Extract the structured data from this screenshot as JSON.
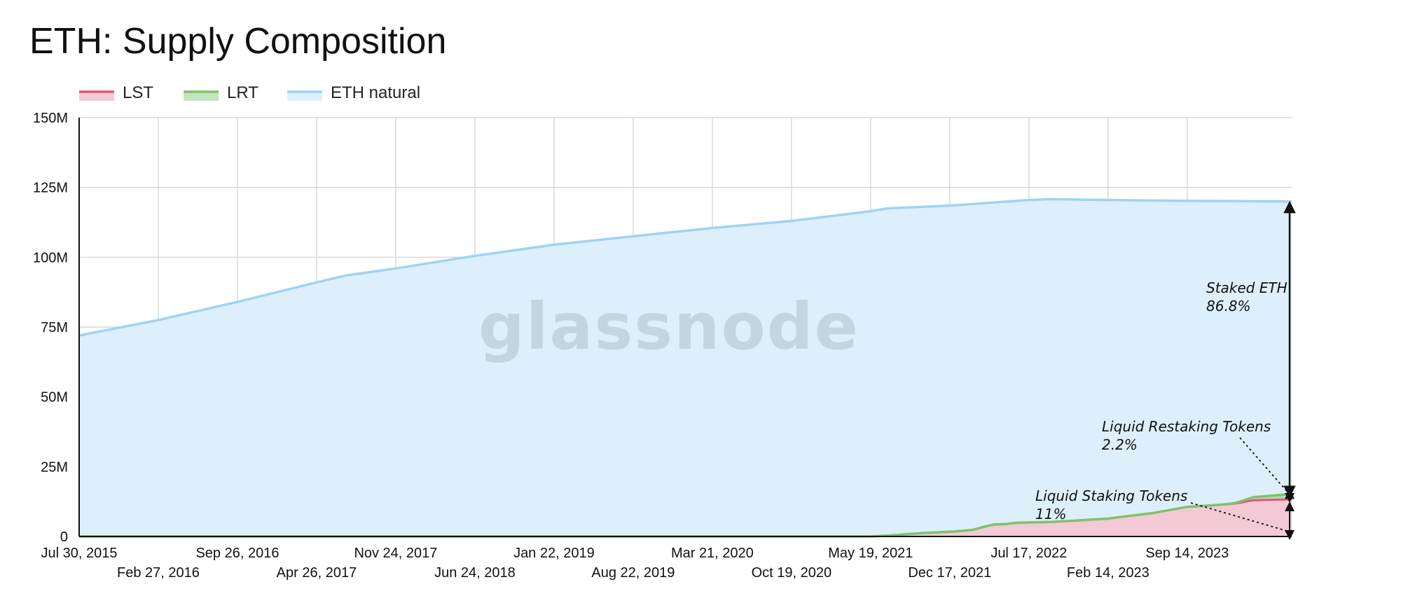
{
  "colors": {
    "lst": "#e0567a",
    "lst_fill": "#f2c9d4",
    "lrt": "#7fc26b",
    "eth": "#9fd3f2",
    "eth_fill": "#ddeffb",
    "grid": "#d9d9d9",
    "axis": "#111111"
  },
  "watermark": "glassnode",
  "chart_data": {
    "type": "area",
    "title": "ETH: Supply Composition",
    "stacked": true,
    "legend_position": "top-left",
    "grid": true,
    "ylim": [
      0,
      150000000
    ],
    "y_ticks": [
      {
        "value": 0,
        "label": "0"
      },
      {
        "value": 25000000,
        "label": "25M"
      },
      {
        "value": 50000000,
        "label": "50M"
      },
      {
        "value": 75000000,
        "label": "75M"
      },
      {
        "value": 100000000,
        "label": "100M"
      },
      {
        "value": 125000000,
        "label": "125M"
      },
      {
        "value": 150000000,
        "label": "150M"
      }
    ],
    "xlim": [
      "2015-07-30",
      "2024-06-20"
    ],
    "x_ticks": [
      {
        "date": "2015-07-30",
        "label": "Jul 30, 2015"
      },
      {
        "date": "2016-02-27",
        "label": "Feb 27, 2016"
      },
      {
        "date": "2016-09-26",
        "label": "Sep 26, 2016"
      },
      {
        "date": "2017-04-26",
        "label": "Apr 26, 2017"
      },
      {
        "date": "2017-11-24",
        "label": "Nov 24, 2017"
      },
      {
        "date": "2018-06-24",
        "label": "Jun 24, 2018"
      },
      {
        "date": "2019-01-22",
        "label": "Jan 22, 2019"
      },
      {
        "date": "2019-08-22",
        "label": "Aug 22, 2019"
      },
      {
        "date": "2020-03-21",
        "label": "Mar 21, 2020"
      },
      {
        "date": "2020-10-19",
        "label": "Oct 19, 2020"
      },
      {
        "date": "2021-05-19",
        "label": "May 19, 2021"
      },
      {
        "date": "2021-12-17",
        "label": "Dec 17, 2021"
      },
      {
        "date": "2022-07-17",
        "label": "Jul 17, 2022"
      },
      {
        "date": "2023-02-14",
        "label": "Feb 14, 2023"
      },
      {
        "date": "2023-09-14",
        "label": "Sep 14, 2023"
      }
    ],
    "series": [
      {
        "name": "LST",
        "key": "lst",
        "points": [
          [
            "2015-07-30",
            0
          ],
          [
            "2021-05-19",
            0
          ],
          [
            "2021-07-15",
            400000
          ],
          [
            "2021-10-01",
            1200000
          ],
          [
            "2022-01-01",
            1800000
          ],
          [
            "2022-02-15",
            2300000
          ],
          [
            "2022-03-20",
            3500000
          ],
          [
            "2022-04-15",
            4300000
          ],
          [
            "2022-05-20",
            4500000
          ],
          [
            "2022-06-10",
            4900000
          ],
          [
            "2022-09-15",
            5200000
          ],
          [
            "2022-12-01",
            5800000
          ],
          [
            "2023-02-14",
            6400000
          ],
          [
            "2023-04-01",
            7200000
          ],
          [
            "2023-06-15",
            8400000
          ],
          [
            "2023-09-14",
            10600000
          ],
          [
            "2023-11-15",
            11100000
          ],
          [
            "2024-01-20",
            11800000
          ],
          [
            "2024-03-10",
            13000000
          ],
          [
            "2024-06-20",
            13300000
          ]
        ]
      },
      {
        "name": "LRT",
        "key": "lrt",
        "points": [
          [
            "2015-07-30",
            0
          ],
          [
            "2024-01-01",
            0
          ],
          [
            "2024-01-20",
            200000
          ],
          [
            "2024-02-15",
            600000
          ],
          [
            "2024-03-10",
            1100000
          ],
          [
            "2024-06-20",
            1900000
          ]
        ]
      },
      {
        "name": "ETH natural",
        "key": "eth",
        "total_points": [
          [
            "2015-07-30",
            72000000
          ],
          [
            "2016-02-27",
            77500000
          ],
          [
            "2016-09-26",
            84000000
          ],
          [
            "2017-04-26",
            91000000
          ],
          [
            "2017-07-15",
            93500000
          ],
          [
            "2017-11-24",
            96000000
          ],
          [
            "2018-06-24",
            100500000
          ],
          [
            "2019-01-22",
            104500000
          ],
          [
            "2019-08-22",
            107500000
          ],
          [
            "2020-03-21",
            110500000
          ],
          [
            "2020-10-19",
            113000000
          ],
          [
            "2021-05-19",
            116500000
          ],
          [
            "2021-07-01",
            117500000
          ],
          [
            "2021-12-17",
            118500000
          ],
          [
            "2022-07-17",
            120500000
          ],
          [
            "2022-09-15",
            120800000
          ],
          [
            "2023-02-14",
            120500000
          ],
          [
            "2023-09-14",
            120200000
          ],
          [
            "2024-06-20",
            120000000
          ]
        ]
      }
    ],
    "annotations": [
      {
        "text": [
          "Staked ETH",
          "86.8%"
        ],
        "kind": "bracket",
        "from": 16000000,
        "to": 120000000,
        "date": "2024-06-20"
      },
      {
        "text": [
          "Liquid Restaking Tokens",
          "2.2%"
        ],
        "kind": "bracket",
        "from": 13300000,
        "to": 15200000,
        "date": "2024-06-20"
      },
      {
        "text": [
          "Liquid Staking Tokens",
          "11%"
        ],
        "kind": "bracket",
        "from": 0,
        "to": 13300000,
        "date": "2024-06-20"
      }
    ]
  }
}
